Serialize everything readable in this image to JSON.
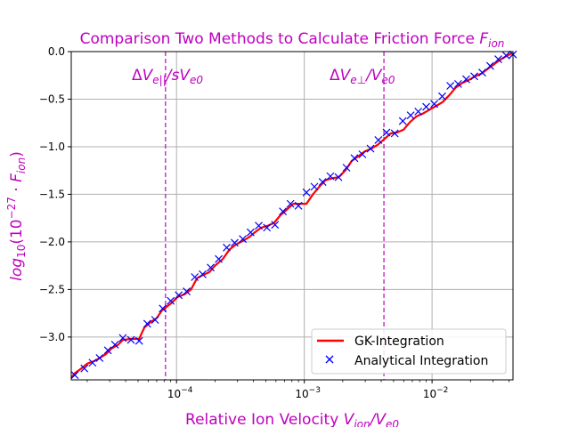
{
  "chart_data": {
    "type": "line",
    "title": "Comparison Two Methods to Calculate Friction Force F_ion",
    "xlabel": "Relative Ion Velocity  V_ion/V_e0",
    "ylabel": "log10(10^-27 · F_ion)",
    "x_scale": "log",
    "xlim": [
      1.5e-05,
      0.043
    ],
    "ylim": [
      -3.45,
      0.0
    ],
    "grid": true,
    "legend_position": "lower-right",
    "colors": {
      "title": "#bf00bf",
      "gk_line": "#ff0000",
      "analytical_marker": "#0000ff",
      "vline": "#bf00bf",
      "grid": "#b0b0b0"
    },
    "x_ticks": [
      {
        "value": 0.0001,
        "base": "10",
        "exp": "−4"
      },
      {
        "value": 0.001,
        "base": "10",
        "exp": "−3"
      },
      {
        "value": 0.01,
        "base": "10",
        "exp": "−2"
      }
    ],
    "y_ticks": [
      {
        "value": 0.0,
        "label": "0.0"
      },
      {
        "value": -0.5,
        "label": "−0.5"
      },
      {
        "value": -1.0,
        "label": "−1.0"
      },
      {
        "value": -1.5,
        "label": "−1.5"
      },
      {
        "value": -2.0,
        "label": "−2.0"
      },
      {
        "value": -2.5,
        "label": "−2.5"
      },
      {
        "value": -3.0,
        "label": "−3.0"
      }
    ],
    "vlines": [
      {
        "x": 8.2e-05,
        "label": "ΔV_e||/sV_e0"
      },
      {
        "x": 0.0042,
        "label": "ΔV_e⊥/V_e0"
      }
    ],
    "series": [
      {
        "name": "GK-Integration",
        "style": "line",
        "x": [
          1.5e-05,
          1.6e-05,
          1.8e-05,
          2e-05,
          2.3e-05,
          2.5e-05,
          2.8e-05,
          3.1e-05,
          3.5e-05,
          3.8e-05,
          4.4e-05,
          5.1e-05,
          5.6e-05,
          6.3e-05,
          7e-05,
          7.7e-05,
          9e-05,
          0.000102,
          0.000116,
          0.00013,
          0.000145,
          0.00016,
          0.00018,
          0.0002,
          0.00023,
          0.00026,
          0.00029,
          0.00033,
          0.00037,
          0.00041,
          0.00046,
          0.00052,
          0.00058,
          0.00065,
          0.00073,
          0.00082,
          0.00092,
          0.00104,
          0.00117,
          0.00131,
          0.00147,
          0.00166,
          0.00186,
          0.00209,
          0.00235,
          0.00264,
          0.00297,
          0.00334,
          0.00375,
          0.00422,
          0.00474,
          0.00533,
          0.00599,
          0.00674,
          0.00757,
          0.00851,
          0.00957,
          0.0108,
          0.0121,
          0.0136,
          0.0153,
          0.0172,
          0.0193,
          0.0217,
          0.0244,
          0.0274,
          0.0308,
          0.0346,
          0.039,
          0.042
        ],
        "y": [
          -3.43,
          -3.38,
          -3.33,
          -3.28,
          -3.25,
          -3.22,
          -3.18,
          -3.12,
          -3.08,
          -3.03,
          -3.02,
          -3.02,
          -2.9,
          -2.84,
          -2.8,
          -2.72,
          -2.65,
          -2.58,
          -2.55,
          -2.5,
          -2.38,
          -2.35,
          -2.32,
          -2.25,
          -2.18,
          -2.08,
          -2.03,
          -1.99,
          -1.95,
          -1.9,
          -1.85,
          -1.83,
          -1.8,
          -1.72,
          -1.66,
          -1.6,
          -1.6,
          -1.6,
          -1.5,
          -1.42,
          -1.35,
          -1.33,
          -1.32,
          -1.25,
          -1.15,
          -1.1,
          -1.05,
          -1.02,
          -0.98,
          -0.92,
          -0.86,
          -0.85,
          -0.82,
          -0.74,
          -0.68,
          -0.65,
          -0.61,
          -0.57,
          -0.53,
          -0.46,
          -0.38,
          -0.33,
          -0.3,
          -0.26,
          -0.23,
          -0.18,
          -0.13,
          -0.08,
          -0.04,
          -0.02
        ]
      },
      {
        "name": "Analytical Integration",
        "style": "marker",
        "x": [
          1.6e-05,
          1.9e-05,
          2.2e-05,
          2.5e-05,
          2.9e-05,
          3.3e-05,
          3.8e-05,
          4.4e-05,
          5.1e-05,
          5.9e-05,
          6.8e-05,
          7.8e-05,
          9e-05,
          0.000104,
          0.00012,
          0.000139,
          0.00016,
          0.000185,
          0.000214,
          0.000247,
          0.000285,
          0.00033,
          0.00038,
          0.00044,
          0.00051,
          0.00059,
          0.00068,
          0.00078,
          0.0009,
          0.00104,
          0.0012,
          0.00139,
          0.0016,
          0.00185,
          0.00214,
          0.00247,
          0.00285,
          0.0033,
          0.0038,
          0.0044,
          0.0051,
          0.0059,
          0.0068,
          0.0078,
          0.009,
          0.0104,
          0.012,
          0.0139,
          0.016,
          0.0185,
          0.0214,
          0.0247,
          0.0285,
          0.033,
          0.038,
          0.043
        ],
        "y": [
          -3.4,
          -3.33,
          -3.27,
          -3.22,
          -3.14,
          -3.08,
          -3.01,
          -3.03,
          -3.04,
          -2.86,
          -2.82,
          -2.7,
          -2.62,
          -2.56,
          -2.52,
          -2.37,
          -2.34,
          -2.27,
          -2.18,
          -2.06,
          -2.01,
          -1.97,
          -1.9,
          -1.83,
          -1.85,
          -1.82,
          -1.68,
          -1.6,
          -1.62,
          -1.48,
          -1.42,
          -1.37,
          -1.31,
          -1.32,
          -1.22,
          -1.12,
          -1.08,
          -1.02,
          -0.93,
          -0.85,
          -0.86,
          -0.73,
          -0.67,
          -0.63,
          -0.58,
          -0.55,
          -0.47,
          -0.36,
          -0.34,
          -0.29,
          -0.26,
          -0.22,
          -0.15,
          -0.08,
          -0.04,
          -0.03
        ]
      }
    ]
  }
}
